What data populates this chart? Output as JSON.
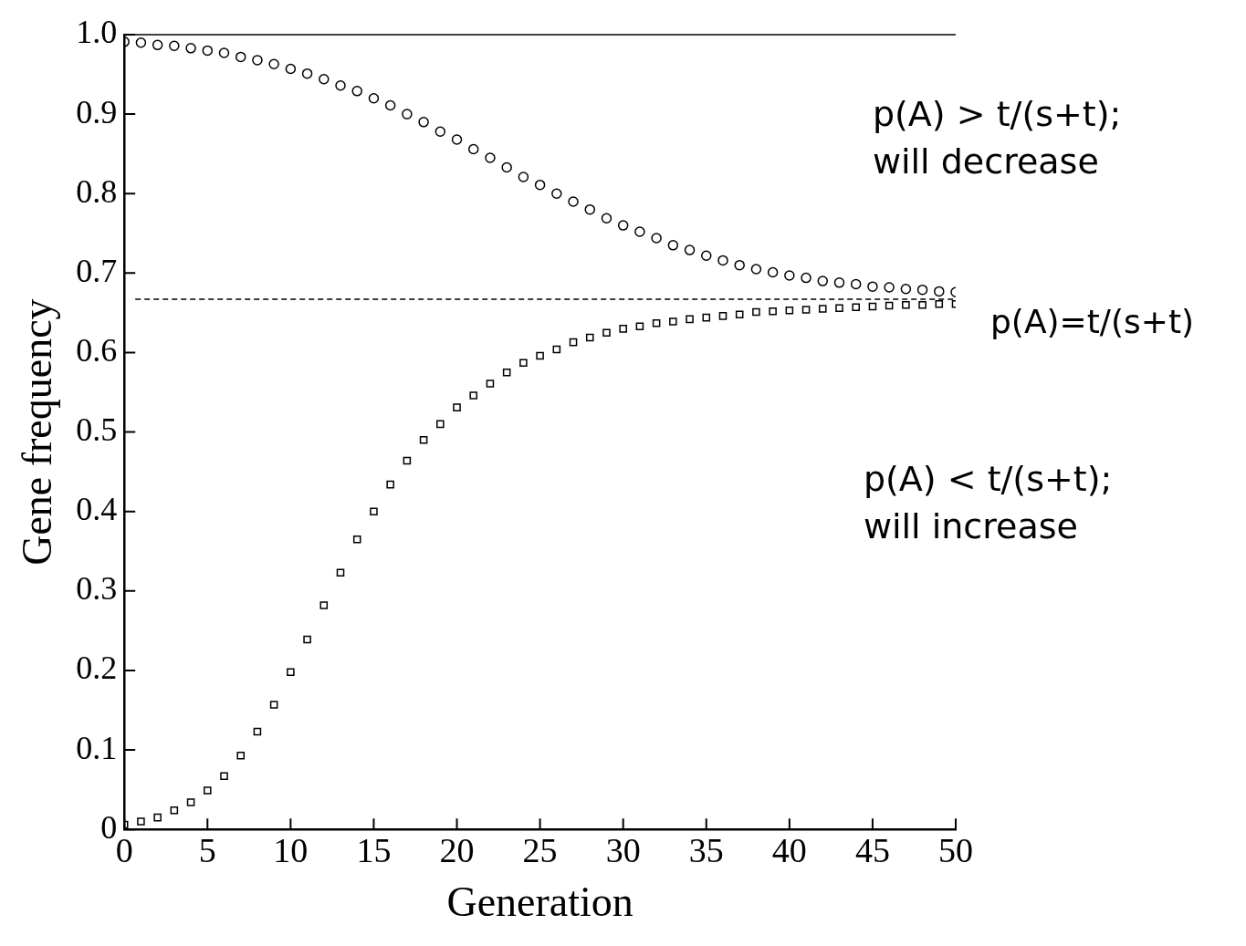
{
  "chart_data": {
    "type": "scatter",
    "xlabel": "Generation",
    "ylabel": "Gene frequency",
    "x": [
      0,
      1,
      2,
      3,
      4,
      5,
      6,
      7,
      8,
      9,
      10,
      11,
      12,
      13,
      14,
      15,
      16,
      17,
      18,
      19,
      20,
      21,
      22,
      23,
      24,
      25,
      26,
      27,
      28,
      29,
      30,
      31,
      32,
      33,
      34,
      35,
      36,
      37,
      38,
      39,
      40,
      41,
      42,
      43,
      44,
      45,
      46,
      47,
      48,
      49,
      50
    ],
    "series": [
      {
        "color": "#000000",
        "marker": "circle",
        "values": [
          0.991,
          0.99,
          0.987,
          0.986,
          0.983,
          0.98,
          0.977,
          0.972,
          0.968,
          0.963,
          0.957,
          0.951,
          0.944,
          0.936,
          0.929,
          0.92,
          0.911,
          0.9,
          0.89,
          0.878,
          0.868,
          0.856,
          0.845,
          0.833,
          0.821,
          0.811,
          0.8,
          0.79,
          0.78,
          0.769,
          0.76,
          0.752,
          0.744,
          0.735,
          0.729,
          0.722,
          0.716,
          0.71,
          0.705,
          0.701,
          0.697,
          0.694,
          0.69,
          0.688,
          0.686,
          0.683,
          0.682,
          0.68,
          0.679,
          0.677,
          0.676
        ]
      },
      {
        "color": "#000000",
        "marker": "square",
        "values": [
          0.006,
          0.01,
          0.015,
          0.024,
          0.034,
          0.049,
          0.067,
          0.093,
          0.123,
          0.157,
          0.198,
          0.239,
          0.282,
          0.323,
          0.365,
          0.4,
          0.434,
          0.464,
          0.49,
          0.51,
          0.531,
          0.546,
          0.561,
          0.575,
          0.587,
          0.596,
          0.604,
          0.613,
          0.619,
          0.625,
          0.63,
          0.633,
          0.637,
          0.639,
          0.642,
          0.644,
          0.646,
          0.648,
          0.651,
          0.652,
          0.653,
          0.654,
          0.655,
          0.656,
          0.657,
          0.658,
          0.659,
          0.66,
          0.66,
          0.661,
          0.661
        ]
      }
    ],
    "xlim": [
      0,
      50
    ],
    "xticks": [
      0,
      5,
      10,
      15,
      20,
      25,
      30,
      35,
      40,
      45,
      50
    ],
    "ylim": [
      0,
      1
    ],
    "yticks": [
      0,
      0.1,
      0.2,
      0.3,
      0.4,
      0.5,
      0.6,
      0.7,
      0.8,
      0.9,
      {
        "value": 1,
        "label": "1.0"
      }
    ],
    "ref_lines": [
      {
        "axis": "y",
        "value": 1,
        "line_style": "solid"
      },
      {
        "axis": "y",
        "value": 0.667,
        "label": "p(A)=t/(s+t)",
        "line_style": "dashed"
      }
    ],
    "annotations": [
      "p(A) > t/(s+t);\nwill decrease",
      "p(A) < t/(s+t);\nwill increase"
    ],
    "grid": false,
    "legend": false
  }
}
